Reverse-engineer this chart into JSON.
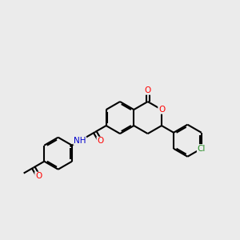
{
  "background_color": "#ebebeb",
  "bond_color": "#000000",
  "bond_lw": 1.5,
  "atom_colors": {
    "O": "#ff0000",
    "N": "#0000cc",
    "Cl": "#228B22",
    "C": "#000000"
  },
  "font_size": 7.5,
  "figsize": [
    3.0,
    3.0
  ],
  "dpi": 100
}
